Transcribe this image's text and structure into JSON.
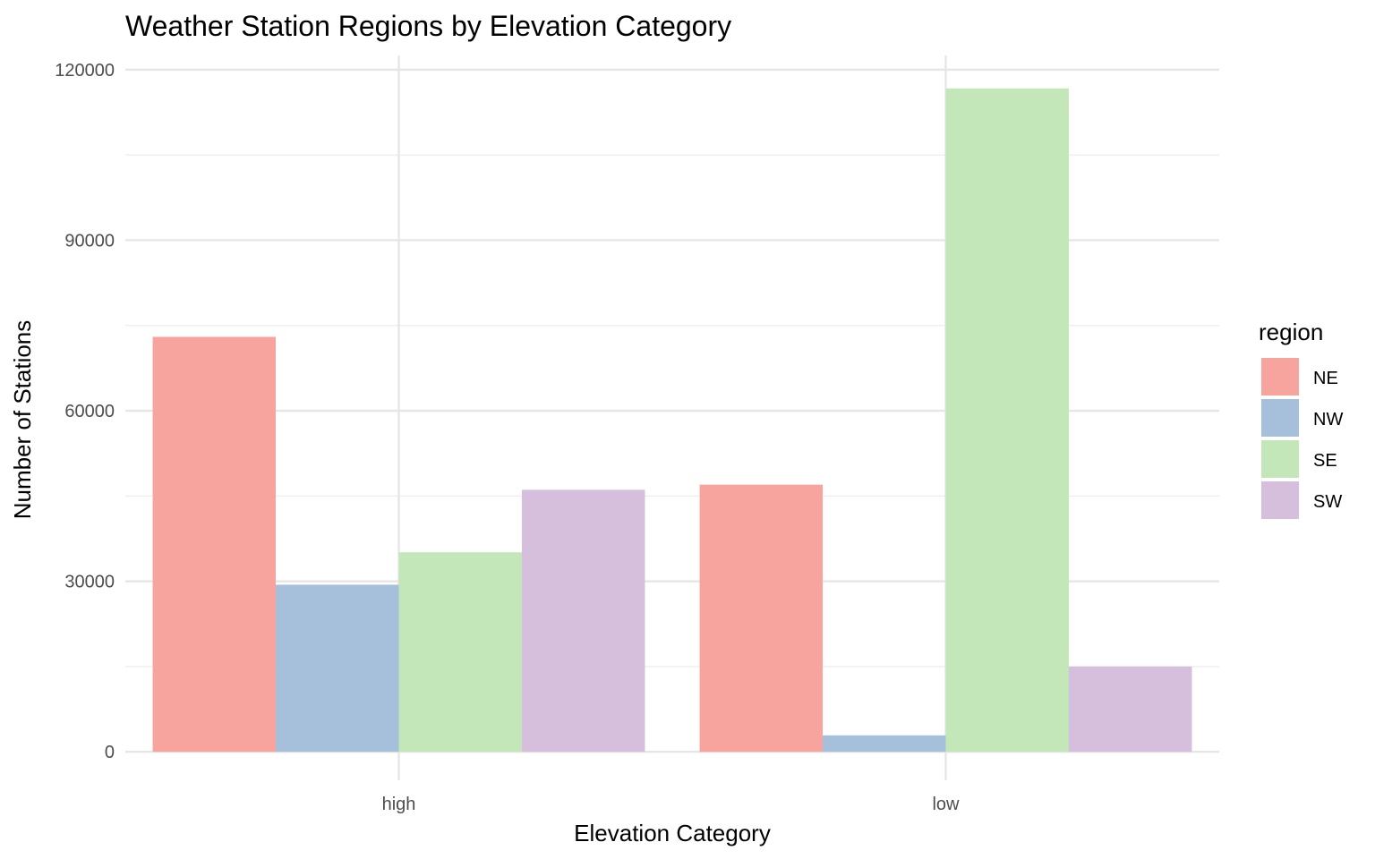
{
  "chart_data": {
    "type": "bar",
    "title": "Weather Station Regions by Elevation Category",
    "xlabel": "Elevation Category",
    "ylabel": "Number of Stations",
    "categories": [
      "high",
      "low"
    ],
    "series": [
      {
        "name": "NE",
        "color": "#F7A39E",
        "values": [
          73000,
          47000
        ]
      },
      {
        "name": "NW",
        "color": "#A6C0DB",
        "values": [
          29400,
          2900
        ]
      },
      {
        "name": "SE",
        "color": "#C3E7B8",
        "values": [
          35100,
          116700
        ]
      },
      {
        "name": "SW",
        "color": "#D6BFDC",
        "values": [
          46100,
          15000
        ]
      }
    ],
    "ylim": [
      -5000,
      122500
    ],
    "yticks": [
      0,
      30000,
      60000,
      90000,
      120000
    ],
    "ytick_labels": [
      "0",
      "30000",
      "60000",
      "90000",
      "120000"
    ],
    "grid": true,
    "legend": {
      "title": "region",
      "position": "right"
    }
  }
}
